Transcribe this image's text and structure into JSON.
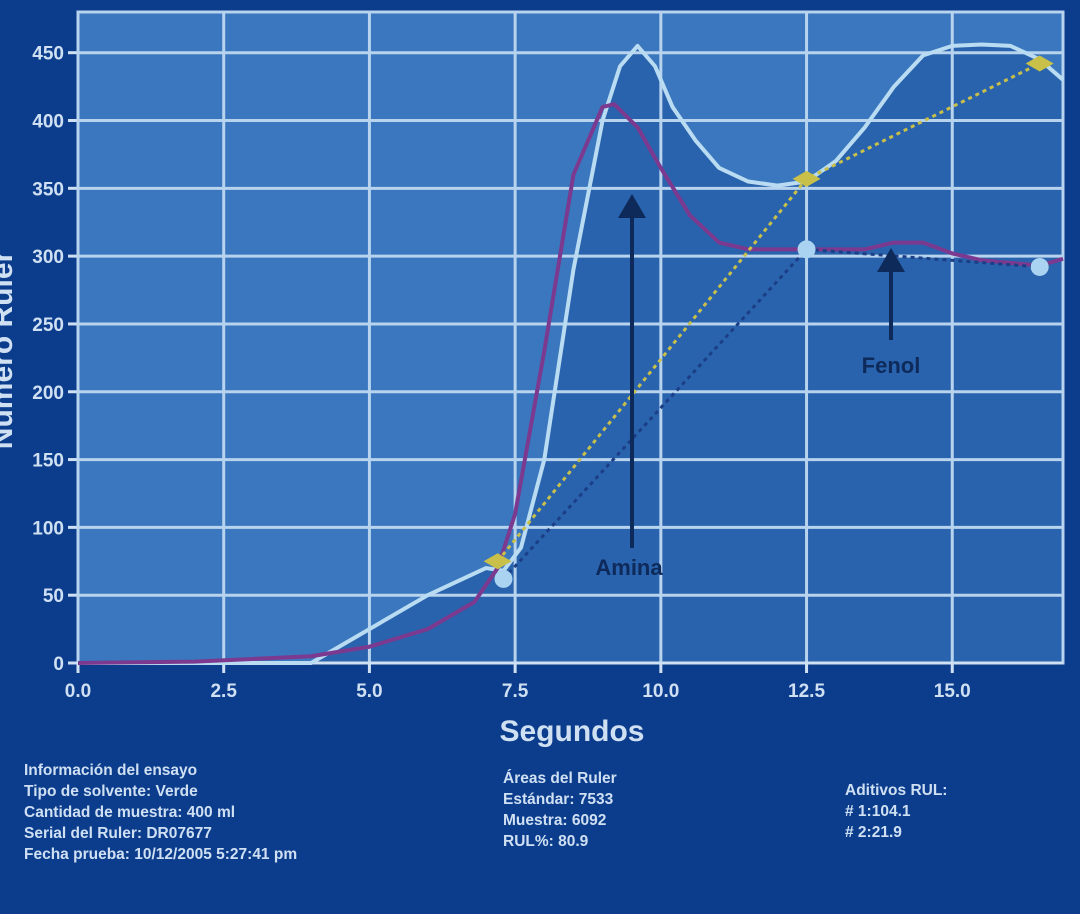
{
  "chart_data": {
    "type": "line",
    "xlabel": "Segundos",
    "ylabel": "Número Ruler",
    "xlim": [
      0,
      16.9
    ],
    "ylim": [
      0,
      480
    ],
    "xticks": [
      {
        "value": 0,
        "label": "0.0"
      },
      2.5,
      {
        "value": 5,
        "label": "5.0"
      },
      7.5,
      {
        "value": 10,
        "label": "10.0"
      },
      12.5,
      {
        "value": 15,
        "label": "15.0"
      }
    ],
    "yticks": [
      0,
      50,
      100,
      150,
      200,
      250,
      300,
      350,
      400,
      450
    ],
    "grid": true,
    "series": [
      {
        "color": "#b9dcf2",
        "area_color": "#2a63ad",
        "fill": true,
        "x": [
          0,
          4,
          5,
          6,
          7,
          7.3,
          7.6,
          8,
          8.5,
          9,
          9.3,
          9.6,
          9.9,
          10.2,
          10.6,
          11,
          11.5,
          12,
          12.5,
          13,
          13.5,
          14,
          14.5,
          15,
          15.5,
          16,
          16.5,
          16.9
        ],
        "values": [
          0,
          0,
          25,
          50,
          70,
          68,
          85,
          150,
          290,
          400,
          440,
          455,
          440,
          410,
          385,
          365,
          355,
          352,
          355,
          370,
          395,
          425,
          448,
          455,
          456,
          455,
          445,
          430
        ]
      },
      {
        "color": "#7b3a8f",
        "x": [
          0,
          2,
          4,
          5,
          6,
          6.8,
          7.2,
          7.5,
          8,
          8.5,
          9,
          9.2,
          9.6,
          10,
          10.5,
          11,
          11.5,
          12,
          12.5,
          13,
          13.5,
          14,
          14.5,
          15,
          15.5,
          16,
          16.5,
          16.9
        ],
        "values": [
          0,
          1,
          5,
          12,
          25,
          45,
          70,
          110,
          230,
          360,
          410,
          412,
          395,
          365,
          330,
          310,
          305,
          305,
          305,
          305,
          305,
          310,
          310,
          302,
          297,
          295,
          293,
          298
        ]
      },
      {
        "color": "#c9c04a",
        "dashed": true,
        "marker": "diamond",
        "x": [
          7.2,
          12.5,
          16.5
        ],
        "values": [
          75,
          357,
          442
        ]
      },
      {
        "color": "#1b3f86",
        "marker_color": "#a9d3f0",
        "dashed": true,
        "marker": "circle",
        "x": [
          7.3,
          12.5,
          16.5
        ],
        "values": [
          62,
          305,
          292
        ]
      }
    ],
    "annotations": [
      "Amina",
      "Fenol"
    ]
  },
  "info": {
    "col1": [
      "Información del ensayo",
      "Tipo de solvente: Verde",
      "Cantidad de muestra: 400 ml",
      "Serial del Ruler: DR07677",
      "Fecha prueba: 10/12/2005 5:27:41 pm"
    ],
    "col2": [
      "Áreas del Ruler",
      "Estándar: 7533",
      "Muestra: 6092",
      "RUL%: 80.9"
    ],
    "col3": [
      "Aditivos RUL:",
      "# 1:104.1",
      "# 2:21.9"
    ]
  }
}
